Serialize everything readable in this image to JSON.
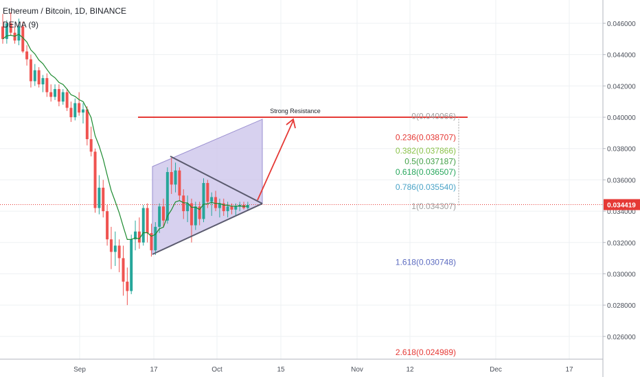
{
  "header": {
    "symbol_line": "Ethereum / Bitcoin, 1D, BINANCE",
    "indicator": "DEMA (9)"
  },
  "colors": {
    "up": "#26a69a",
    "down": "#ef5350",
    "ema": "#1b8a2e",
    "resistance": "#e53935",
    "price_line": "#e53935",
    "channel_fill": "#c9c2e9",
    "triangle_line": "#5a5a6e"
  },
  "annotations": {
    "resistance_label": "Strong Resistance"
  },
  "chart_data": {
    "type": "candlestick",
    "x_tick_labels": [
      "Sep",
      "17",
      "Oct",
      "15",
      "Nov",
      "12",
      "Dec",
      "17"
    ],
    "y_tick_labels": [
      "0.046000",
      "0.044000",
      "0.042000",
      "0.040000",
      "0.038000",
      "0.036000",
      "0.034000",
      "0.032000",
      "0.030000",
      "0.028000",
      "0.026000"
    ],
    "ylim": [
      0.0248,
      0.0472
    ],
    "current_price": "0.034419",
    "fib_levels": [
      {
        "ratio": "0",
        "price": "0.040066",
        "value": 0.040066,
        "color": "#9e9e9e"
      },
      {
        "ratio": "0.236",
        "price": "0.038707",
        "value": 0.038707,
        "color": "#e53935"
      },
      {
        "ratio": "0.382",
        "price": "0.037866",
        "value": 0.037866,
        "color": "#8bc34a"
      },
      {
        "ratio": "0.5",
        "price": "0.037187",
        "value": 0.037187,
        "color": "#43a047"
      },
      {
        "ratio": "0.618",
        "price": "0.036507",
        "value": 0.036507,
        "color": "#26a65b"
      },
      {
        "ratio": "0.786",
        "price": "0.035540",
        "value": 0.03554,
        "color": "#4aa3c7"
      },
      {
        "ratio": "1",
        "price": "0.034307",
        "value": 0.034307,
        "color": "#9e9e9e"
      },
      {
        "ratio": "1.618",
        "price": "0.030748",
        "value": 0.030748,
        "color": "#5c6bc0"
      },
      {
        "ratio": "2.618",
        "price": "0.024989",
        "value": 0.024989,
        "color": "#e53935"
      }
    ],
    "candles": [
      [
        0.0458,
        0.0466,
        0.0447,
        0.045
      ],
      [
        0.045,
        0.0462,
        0.0447,
        0.046
      ],
      [
        0.046,
        0.0467,
        0.0452,
        0.0454
      ],
      [
        0.0454,
        0.0458,
        0.0447,
        0.0449
      ],
      [
        0.0449,
        0.0463,
        0.0446,
        0.0458
      ],
      [
        0.0458,
        0.0461,
        0.0441,
        0.0442
      ],
      [
        0.0442,
        0.0446,
        0.0433,
        0.0437
      ],
      [
        0.0437,
        0.044,
        0.0419,
        0.0423
      ],
      [
        0.0423,
        0.0434,
        0.042,
        0.043
      ],
      [
        0.043,
        0.0432,
        0.0419,
        0.0421
      ],
      [
        0.0421,
        0.0427,
        0.0416,
        0.0425
      ],
      [
        0.0425,
        0.0428,
        0.0413,
        0.0416
      ],
      [
        0.0416,
        0.0421,
        0.041,
        0.0413
      ],
      [
        0.0413,
        0.0421,
        0.0411,
        0.0418
      ],
      [
        0.0418,
        0.0421,
        0.0407,
        0.041
      ],
      [
        0.041,
        0.0418,
        0.0408,
        0.0416
      ],
      [
        0.0416,
        0.0418,
        0.0404,
        0.0406
      ],
      [
        0.0406,
        0.041,
        0.0397,
        0.04
      ],
      [
        0.04,
        0.0412,
        0.0398,
        0.0409
      ],
      [
        0.0409,
        0.0416,
        0.0401,
        0.0403
      ],
      [
        0.0403,
        0.0409,
        0.0396,
        0.0405
      ],
      [
        0.0405,
        0.0407,
        0.0382,
        0.0386
      ],
      [
        0.0386,
        0.0394,
        0.0375,
        0.0378
      ],
      [
        0.0378,
        0.038,
        0.0339,
        0.0342
      ],
      [
        0.0342,
        0.0363,
        0.0338,
        0.0355
      ],
      [
        0.0355,
        0.036,
        0.0336,
        0.034
      ],
      [
        0.034,
        0.0344,
        0.0318,
        0.0322
      ],
      [
        0.0322,
        0.033,
        0.0303,
        0.0314
      ],
      [
        0.0314,
        0.0327,
        0.0305,
        0.0318
      ],
      [
        0.0318,
        0.0322,
        0.0301,
        0.031
      ],
      [
        0.031,
        0.0318,
        0.0286,
        0.0295
      ],
      [
        0.0295,
        0.0304,
        0.028,
        0.0289
      ],
      [
        0.0289,
        0.0325,
        0.0287,
        0.0322
      ],
      [
        0.0322,
        0.0334,
        0.0315,
        0.0327
      ],
      [
        0.0327,
        0.0336,
        0.0316,
        0.032
      ],
      [
        0.032,
        0.0344,
        0.0318,
        0.0342
      ],
      [
        0.0342,
        0.0345,
        0.032,
        0.0326
      ],
      [
        0.0326,
        0.0332,
        0.0311,
        0.0315
      ],
      [
        0.0315,
        0.0333,
        0.0312,
        0.033
      ],
      [
        0.033,
        0.0345,
        0.0326,
        0.0343
      ],
      [
        0.0343,
        0.0348,
        0.033,
        0.0334
      ],
      [
        0.0334,
        0.0368,
        0.0332,
        0.0365
      ],
      [
        0.0365,
        0.0374,
        0.0351,
        0.0357
      ],
      [
        0.0357,
        0.0371,
        0.0352,
        0.0366
      ],
      [
        0.0366,
        0.0368,
        0.0347,
        0.035
      ],
      [
        0.035,
        0.0354,
        0.0335,
        0.034
      ],
      [
        0.034,
        0.035,
        0.0333,
        0.0345
      ],
      [
        0.0345,
        0.0348,
        0.032,
        0.0331
      ],
      [
        0.0331,
        0.0346,
        0.0328,
        0.0343
      ],
      [
        0.0343,
        0.0346,
        0.0331,
        0.0335
      ],
      [
        0.0335,
        0.0361,
        0.0333,
        0.0358
      ],
      [
        0.0358,
        0.036,
        0.0342,
        0.0346
      ],
      [
        0.0346,
        0.0352,
        0.0337,
        0.0349
      ],
      [
        0.0349,
        0.0353,
        0.034,
        0.0342
      ],
      [
        0.0342,
        0.0348,
        0.0336,
        0.0345
      ],
      [
        0.0345,
        0.0348,
        0.0337,
        0.034
      ],
      [
        0.034,
        0.0346,
        0.0336,
        0.0343
      ],
      [
        0.0343,
        0.0345,
        0.0338,
        0.0341
      ],
      [
        0.0341,
        0.0345,
        0.0337,
        0.0343
      ],
      [
        0.0343,
        0.0346,
        0.034,
        0.0344
      ],
      [
        0.0344,
        0.0346,
        0.0341,
        0.0342
      ],
      [
        0.0342,
        0.0346,
        0.0341,
        0.0344
      ]
    ]
  }
}
